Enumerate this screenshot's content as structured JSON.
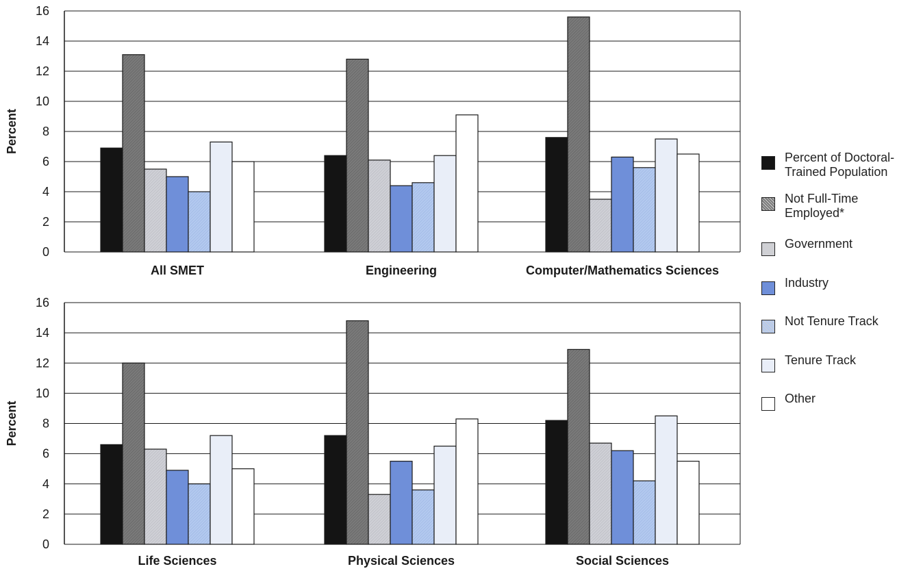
{
  "legend": [
    {
      "label": "Percent  of Doctoral-\nTrained Population",
      "color": "#141414",
      "pattern": false
    },
    {
      "label": "Not Full-Time\nEmployed*",
      "color": "#7a7a7a",
      "pattern": true
    },
    {
      "label": "Government",
      "color": "#cfd0d6",
      "pattern": true
    },
    {
      "label": "Industry",
      "color": "#6f8fd9",
      "pattern": false
    },
    {
      "label": "Not Tenure Track",
      "color": "#b3c9ef",
      "pattern": true
    },
    {
      "label": "Tenure Track",
      "color": "#e9eef8",
      "pattern": false
    },
    {
      "label": "Other",
      "color": "#ffffff",
      "pattern": false
    }
  ],
  "chart_data": [
    {
      "type": "bar",
      "ylabel": "Percent",
      "ylim": [
        0,
        16
      ],
      "yticks": [
        "0",
        "2",
        "4",
        "6",
        "8",
        "10",
        "12",
        "14",
        "16"
      ],
      "grid": true,
      "categories": [
        "All SMET",
        "Engineering",
        "Computer/Mathematics Sciences"
      ],
      "series": [
        {
          "name": "Percent  of Doctoral-Trained Population",
          "values": [
            6.9,
            6.4,
            7.6
          ]
        },
        {
          "name": "Not Full-Time Employed*",
          "values": [
            13.1,
            12.8,
            15.6
          ]
        },
        {
          "name": "Government",
          "values": [
            5.5,
            6.1,
            3.5
          ]
        },
        {
          "name": "Industry",
          "values": [
            5.0,
            4.4,
            6.3
          ]
        },
        {
          "name": "Not Tenure Track",
          "values": [
            4.0,
            4.6,
            5.6
          ]
        },
        {
          "name": "Tenure Track",
          "values": [
            7.3,
            6.4,
            7.5
          ]
        },
        {
          "name": "Other",
          "values": [
            6.0,
            9.1,
            6.5
          ]
        }
      ]
    },
    {
      "type": "bar",
      "ylabel": "Percent",
      "ylim": [
        0,
        16
      ],
      "yticks": [
        "0",
        "2",
        "4",
        "6",
        "8",
        "10",
        "12",
        "14",
        "16"
      ],
      "grid": true,
      "categories": [
        "Life Sciences",
        "Physical Sciences",
        "Social Sciences"
      ],
      "series": [
        {
          "name": "Percent  of Doctoral-Trained Population",
          "values": [
            6.6,
            7.2,
            8.2
          ]
        },
        {
          "name": "Not Full-Time Employed*",
          "values": [
            12.0,
            14.8,
            12.9
          ]
        },
        {
          "name": "Government",
          "values": [
            6.3,
            3.3,
            6.7
          ]
        },
        {
          "name": "Industry",
          "values": [
            4.9,
            5.5,
            6.2
          ]
        },
        {
          "name": "Not Tenure Track",
          "values": [
            4.0,
            3.6,
            4.2
          ]
        },
        {
          "name": "Tenure Track",
          "values": [
            7.2,
            6.5,
            8.5
          ]
        },
        {
          "name": "Other",
          "values": [
            5.0,
            8.3,
            5.5
          ]
        }
      ]
    }
  ]
}
